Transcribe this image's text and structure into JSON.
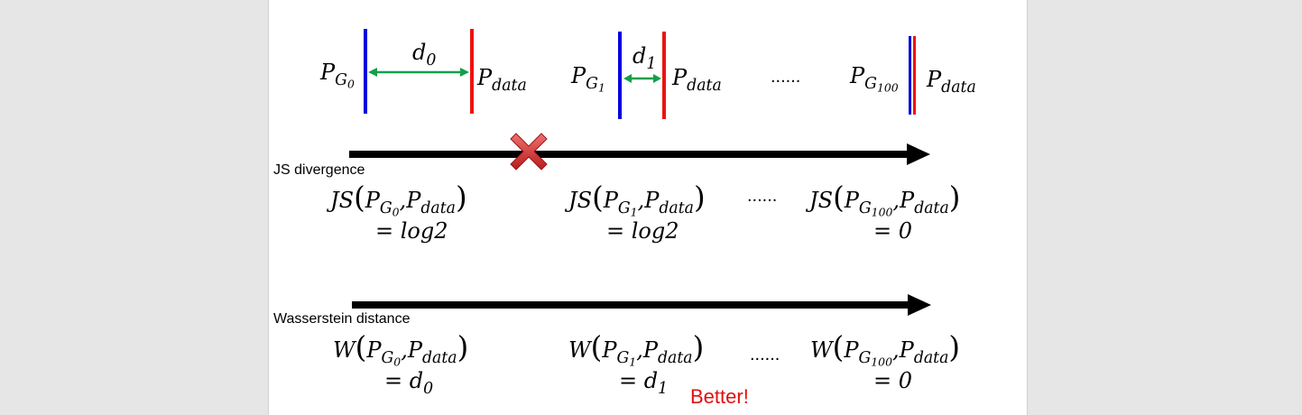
{
  "top_row": {
    "pg0_base": "P",
    "pg0_sub": "G",
    "pg0_subsub": "0",
    "d0_base": "d",
    "d0_sub": "0",
    "pdata1_base": "P",
    "pdata1_sub": "data",
    "pg1_base": "P",
    "pg1_sub": "G",
    "pg1_subsub": "1",
    "d1_base": "d",
    "d1_sub": "1",
    "pdata2_base": "P",
    "pdata2_sub": "data",
    "dots": "......",
    "pg100_base": "P",
    "pg100_sub": "G",
    "pg100_subsub": "100",
    "pdata3_base": "P",
    "pdata3_sub": "data"
  },
  "js_section": {
    "label": "JS divergence",
    "dots": "......",
    "expr1": {
      "fn": "JS",
      "pg_sub": "0",
      "result": "= log2"
    },
    "expr2": {
      "fn": "JS",
      "pg_sub": "1",
      "result": "= log2"
    },
    "expr3": {
      "fn": "JS",
      "pg_sub": "100",
      "result": "= 0"
    }
  },
  "w_section": {
    "label": "Wasserstein distance",
    "dots": "......",
    "expr1": {
      "fn": "W",
      "pg_sub": "0",
      "result_base": "= d",
      "result_sub": "0"
    },
    "expr2": {
      "fn": "W",
      "pg_sub": "1",
      "result_base": "= d",
      "result_sub": "1"
    },
    "expr3": {
      "fn": "W",
      "pg_sub": "100",
      "result": "= 0"
    }
  },
  "common": {
    "P": "P",
    "G": "G",
    "data": "data",
    "comma": ",",
    "lparen": "(",
    "rparen": ")"
  },
  "better": "Better!",
  "colors": {
    "blue": "#0000e0",
    "red": "#ee1111",
    "green": "#12a04a",
    "black": "#000000",
    "cross": "#d42a2a"
  }
}
